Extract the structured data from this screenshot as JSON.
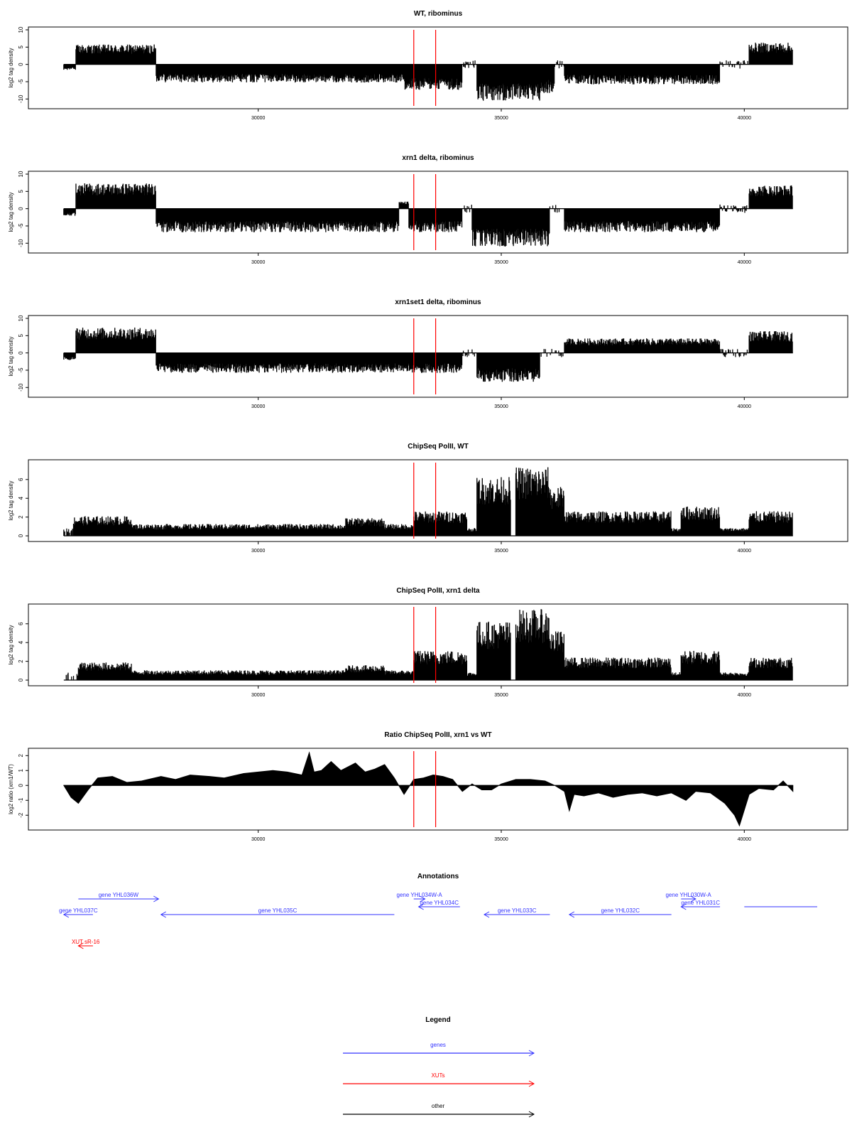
{
  "chart_data": [
    {
      "type": "bar",
      "title": "WT, ribominus",
      "xlabel": "",
      "ylabel": "log2 tag density",
      "xlim": [
        25900,
        41500
      ],
      "ylim": [
        -12,
        10
      ],
      "xticks": [
        30000,
        35000,
        40000
      ],
      "xtick_labels": [
        "30000",
        "35000",
        "40000"
      ],
      "yticks": [
        10,
        5,
        0,
        -5,
        -10
      ],
      "ytick_labels": [
        "10",
        "5",
        "0",
        "-5",
        "-10"
      ],
      "markers": [
        33200,
        33650
      ],
      "profile": [
        {
          "start": 26000,
          "end": 26250,
          "value": -1.5
        },
        {
          "start": 26250,
          "end": 27900,
          "value": 5.5
        },
        {
          "start": 27900,
          "end": 33000,
          "value": -5
        },
        {
          "start": 33000,
          "end": 34200,
          "value": -7
        },
        {
          "start": 34200,
          "end": 34500,
          "value": 0
        },
        {
          "start": 34500,
          "end": 35800,
          "value": -10
        },
        {
          "start": 35800,
          "end": 36100,
          "value": -8
        },
        {
          "start": 36100,
          "end": 36300,
          "value": 0
        },
        {
          "start": 36300,
          "end": 39500,
          "value": -5.5
        },
        {
          "start": 39500,
          "end": 40100,
          "value": 0
        },
        {
          "start": 40100,
          "end": 41000,
          "value": 6
        }
      ]
    },
    {
      "type": "bar",
      "title": "xrn1 delta, ribominus",
      "xlabel": "",
      "ylabel": "log2 tag density",
      "xlim": [
        25900,
        41500
      ],
      "ylim": [
        -12,
        10
      ],
      "xticks": [
        30000,
        35000,
        40000
      ],
      "xtick_labels": [
        "30000",
        "35000",
        "40000"
      ],
      "yticks": [
        10,
        5,
        0,
        -5,
        -10
      ],
      "ytick_labels": [
        "10",
        "5",
        "0",
        "-5",
        "-10"
      ],
      "markers": [
        33200,
        33650
      ],
      "profile": [
        {
          "start": 26000,
          "end": 26250,
          "value": -2
        },
        {
          "start": 26250,
          "end": 27900,
          "value": 7
        },
        {
          "start": 27900,
          "end": 32900,
          "value": -6.5
        },
        {
          "start": 32900,
          "end": 33100,
          "value": 2
        },
        {
          "start": 33100,
          "end": 34200,
          "value": -6.5
        },
        {
          "start": 34200,
          "end": 34400,
          "value": 0
        },
        {
          "start": 34400,
          "end": 36000,
          "value": -10.5
        },
        {
          "start": 36000,
          "end": 36300,
          "value": 0
        },
        {
          "start": 36300,
          "end": 39500,
          "value": -6.5
        },
        {
          "start": 39500,
          "end": 40100,
          "value": 0
        },
        {
          "start": 40100,
          "end": 41000,
          "value": 6.5
        }
      ]
    },
    {
      "type": "bar",
      "title": "xrn1set1 delta, ribominus",
      "xlabel": "",
      "ylabel": "log2 tag density",
      "xlim": [
        25900,
        41500
      ],
      "ylim": [
        -12,
        10
      ],
      "xticks": [
        30000,
        35000,
        40000
      ],
      "xtick_labels": [
        "30000",
        "35000",
        "40000"
      ],
      "yticks": [
        10,
        5,
        0,
        -5,
        -10
      ],
      "ytick_labels": [
        "10",
        "5",
        "0",
        "-5",
        "-10"
      ],
      "markers": [
        33200,
        33650
      ],
      "profile": [
        {
          "start": 26000,
          "end": 26250,
          "value": -2
        },
        {
          "start": 26250,
          "end": 27900,
          "value": 7
        },
        {
          "start": 27900,
          "end": 33000,
          "value": -5.5
        },
        {
          "start": 33000,
          "end": 34200,
          "value": -5.5
        },
        {
          "start": 34200,
          "end": 34500,
          "value": 0
        },
        {
          "start": 34500,
          "end": 35800,
          "value": -8
        },
        {
          "start": 35800,
          "end": 36300,
          "value": 0
        },
        {
          "start": 36300,
          "end": 39500,
          "value": 4
        },
        {
          "start": 39500,
          "end": 40100,
          "value": 0
        },
        {
          "start": 40100,
          "end": 41000,
          "value": 6
        }
      ]
    },
    {
      "type": "bar",
      "title": "ChipSeq PolII, WT",
      "xlabel": "",
      "ylabel": "log2 tag density",
      "xlim": [
        25900,
        41500
      ],
      "ylim": [
        -0.3,
        7.8
      ],
      "xticks": [
        30000,
        35000,
        40000
      ],
      "xtick_labels": [
        "30000",
        "35000",
        "40000"
      ],
      "yticks": [
        0,
        2,
        4,
        6
      ],
      "ytick_labels": [
        "0",
        "2",
        "4",
        "6"
      ],
      "markers": [
        33200,
        33650
      ],
      "profile": [
        {
          "start": 26000,
          "end": 26200,
          "value": 0
        },
        {
          "start": 26200,
          "end": 27400,
          "value": 2
        },
        {
          "start": 27400,
          "end": 31800,
          "value": 1.2
        },
        {
          "start": 31800,
          "end": 32600,
          "value": 1.8
        },
        {
          "start": 32600,
          "end": 33200,
          "value": 1.2
        },
        {
          "start": 33200,
          "end": 34300,
          "value": 2.5
        },
        {
          "start": 34300,
          "end": 34500,
          "value": 0.8
        },
        {
          "start": 34500,
          "end": 35200,
          "value": 6
        },
        {
          "start": 35300,
          "end": 36000,
          "value": 7
        },
        {
          "start": 36000,
          "end": 36300,
          "value": 5
        },
        {
          "start": 36300,
          "end": 38500,
          "value": 2.5
        },
        {
          "start": 38500,
          "end": 38700,
          "value": 0.8
        },
        {
          "start": 38700,
          "end": 39500,
          "value": 3
        },
        {
          "start": 39500,
          "end": 40100,
          "value": 0.8
        },
        {
          "start": 40100,
          "end": 41000,
          "value": 2.5
        }
      ]
    },
    {
      "type": "bar",
      "title": "ChipSeq PolII, xrn1 delta",
      "xlabel": "",
      "ylabel": "log2 tag density",
      "xlim": [
        25900,
        41500
      ],
      "ylim": [
        -0.3,
        7.8
      ],
      "xticks": [
        30000,
        35000,
        40000
      ],
      "xtick_labels": [
        "30000",
        "35000",
        "40000"
      ],
      "yticks": [
        0,
        2,
        4,
        6
      ],
      "ytick_labels": [
        "0",
        "2",
        "4",
        "6"
      ],
      "markers": [
        33200,
        33650
      ],
      "profile": [
        {
          "start": 26000,
          "end": 26300,
          "value": 0
        },
        {
          "start": 26300,
          "end": 27400,
          "value": 1.8
        },
        {
          "start": 27400,
          "end": 31800,
          "value": 1
        },
        {
          "start": 31800,
          "end": 32600,
          "value": 1.5
        },
        {
          "start": 32600,
          "end": 33200,
          "value": 1
        },
        {
          "start": 33200,
          "end": 34300,
          "value": 3
        },
        {
          "start": 34300,
          "end": 34500,
          "value": 0.8
        },
        {
          "start": 34500,
          "end": 35200,
          "value": 6
        },
        {
          "start": 35300,
          "end": 36000,
          "value": 7.2
        },
        {
          "start": 36000,
          "end": 36300,
          "value": 5
        },
        {
          "start": 36300,
          "end": 38500,
          "value": 2.3
        },
        {
          "start": 38500,
          "end": 38700,
          "value": 0.8
        },
        {
          "start": 38700,
          "end": 39500,
          "value": 3
        },
        {
          "start": 39500,
          "end": 40100,
          "value": 0.8
        },
        {
          "start": 40100,
          "end": 41000,
          "value": 2.3
        }
      ]
    },
    {
      "type": "area",
      "title": "Ratio ChipSeq PolII, xrn1 vs WT",
      "xlabel": "",
      "ylabel": "log2 ratio (xrn1/WT)",
      "xlim": [
        25900,
        41500
      ],
      "ylim": [
        -2.8,
        2.3
      ],
      "xticks": [
        30000,
        35000,
        40000
      ],
      "xtick_labels": [
        "30000",
        "35000",
        "40000"
      ],
      "yticks": [
        2,
        1,
        0,
        -1,
        -2
      ],
      "ytick_labels": [
        "2",
        "1",
        "0",
        "-1",
        "-2"
      ],
      "markers": [
        33200,
        33650
      ],
      "x": [
        26000,
        26150,
        26300,
        26500,
        26700,
        27000,
        27300,
        27600,
        28000,
        28300,
        28600,
        29000,
        29300,
        29700,
        30000,
        30300,
        30600,
        30900,
        31050,
        31150,
        31300,
        31500,
        31700,
        32000,
        32200,
        32400,
        32600,
        32800,
        33000,
        33200,
        33400,
        33600,
        33800,
        34000,
        34200,
        34400,
        34600,
        34800,
        35000,
        35300,
        35600,
        35900,
        36100,
        36300,
        36400,
        36500,
        36700,
        37000,
        37300,
        37600,
        37900,
        38200,
        38500,
        38800,
        39000,
        39300,
        39600,
        39800,
        39900,
        40100,
        40300,
        40600,
        40800,
        41000
      ],
      "values": [
        0,
        -0.8,
        -1.2,
        -0.3,
        0.5,
        0.6,
        0.2,
        0.3,
        0.6,
        0.4,
        0.7,
        0.6,
        0.5,
        0.8,
        0.9,
        1.0,
        0.9,
        0.7,
        2.2,
        0.9,
        1.0,
        1.6,
        1.0,
        1.5,
        0.9,
        1.1,
        1.4,
        0.5,
        -0.6,
        0.4,
        0.5,
        0.7,
        0.6,
        0.4,
        -0.4,
        0.1,
        -0.3,
        -0.3,
        0.1,
        0.4,
        0.4,
        0.3,
        0,
        -0.4,
        -1.7,
        -0.6,
        -0.7,
        -0.5,
        -0.8,
        -0.6,
        -0.5,
        -0.7,
        -0.5,
        -1.0,
        -0.4,
        -0.5,
        -1.2,
        -2.0,
        -2.7,
        -0.6,
        -0.2,
        -0.3,
        0.3,
        -0.4
      ]
    }
  ],
  "annotations": {
    "title": "Annotations",
    "colors": {
      "genes": "#3333ff",
      "XUTs": "#ff0000",
      "other": "#000000"
    },
    "xlim": [
      25900,
      41500
    ],
    "features": [
      {
        "label": "gene YHL037C",
        "kind": "gene",
        "start": 26000,
        "end": 26600,
        "row": 2,
        "strand": "-"
      },
      {
        "label": "gene YHL036W",
        "kind": "gene",
        "start": 26300,
        "end": 27950,
        "row": 0,
        "strand": "+"
      },
      {
        "label": "gene YHL035C",
        "kind": "gene",
        "start": 28000,
        "end": 32800,
        "row": 2,
        "strand": "-"
      },
      {
        "label": "gene YHL034W-A",
        "kind": "gene",
        "start": 33200,
        "end": 33430,
        "row": 0,
        "strand": "+"
      },
      {
        "label": "gene YHL034C",
        "kind": "gene",
        "start": 33300,
        "end": 34150,
        "row": 1,
        "strand": "-"
      },
      {
        "label": "gene YHL033C",
        "kind": "gene",
        "start": 34650,
        "end": 36000,
        "row": 2,
        "strand": "-"
      },
      {
        "label": "gene YHL032C",
        "kind": "gene",
        "start": 36400,
        "end": 38500,
        "row": 2,
        "strand": "-"
      },
      {
        "label": "gene YHL030W-A",
        "kind": "gene",
        "start": 38700,
        "end": 39000,
        "row": 0,
        "strand": "+"
      },
      {
        "label": "gene YHL031C",
        "kind": "gene",
        "start": 38700,
        "end": 39500,
        "row": 1,
        "strand": "-"
      },
      {
        "label": "",
        "kind": "gene",
        "start": 40000,
        "end": 41500,
        "row": 1,
        "strand": "none"
      },
      {
        "label": "XUT sR-16",
        "kind": "xut",
        "start": 26300,
        "end": 26600,
        "row": 6,
        "strand": "-"
      }
    ]
  },
  "legend": {
    "title": "Legend",
    "items": [
      {
        "label": "genes",
        "color": "#3333ff"
      },
      {
        "label": "XUTs",
        "color": "#ff0000"
      },
      {
        "label": "other",
        "color": "#000000"
      }
    ]
  }
}
